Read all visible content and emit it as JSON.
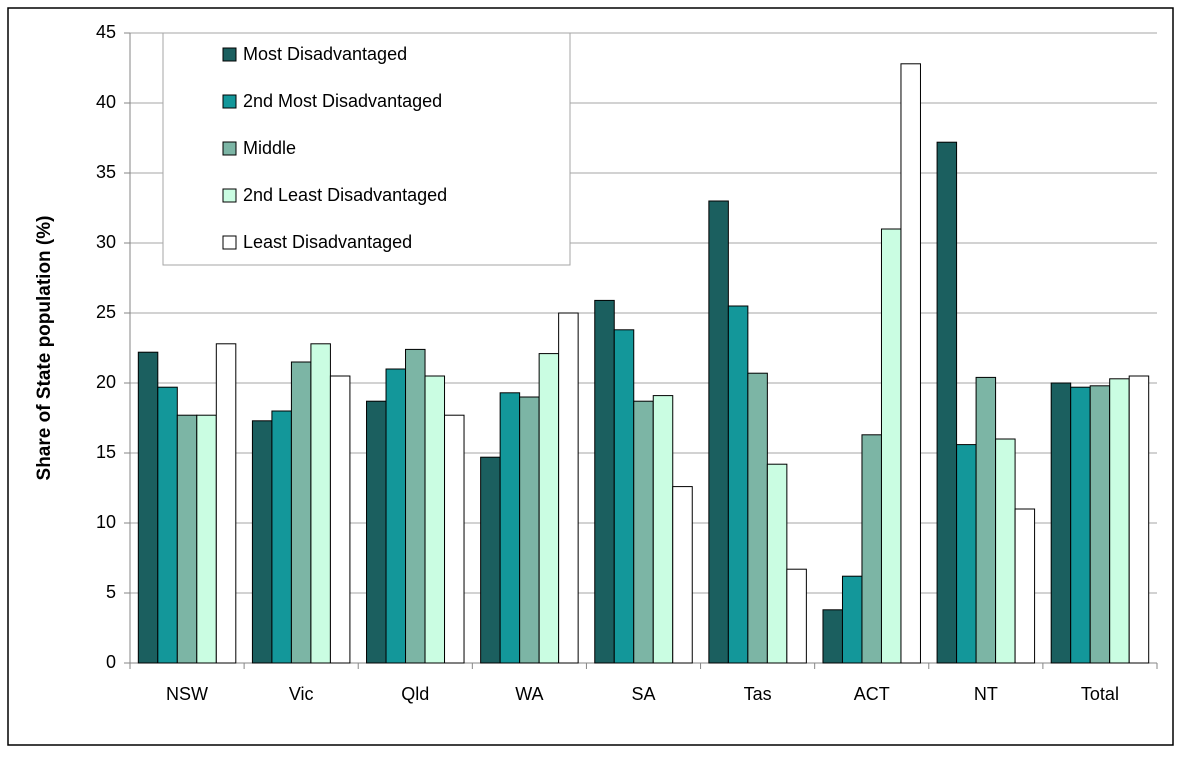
{
  "chart_data": {
    "type": "bar",
    "y_label": "Share of State population (%)",
    "categories": [
      "NSW",
      "Vic",
      "Qld",
      "WA",
      "SA",
      "Tas",
      "ACT",
      "NT",
      "Total"
    ],
    "series": [
      {
        "name": "Most Disadvantaged",
        "color": "#1b5f5f",
        "values": [
          22.2,
          17.3,
          18.7,
          14.7,
          25.9,
          33.0,
          3.8,
          37.2,
          20.0
        ]
      },
      {
        "name": "2nd Most Disadvantaged",
        "color": "#13979a",
        "values": [
          19.7,
          18.0,
          21.0,
          19.3,
          23.8,
          25.5,
          6.2,
          15.6,
          19.7
        ]
      },
      {
        "name": "Middle",
        "color": "#7cb5a5",
        "values": [
          17.7,
          21.5,
          22.4,
          19.0,
          18.7,
          20.7,
          16.3,
          20.4,
          19.8
        ]
      },
      {
        "name": "2nd Least Disadvantaged",
        "color": "#cafde2",
        "values": [
          17.7,
          22.8,
          20.5,
          22.1,
          19.1,
          14.2,
          31.0,
          16.0,
          20.3
        ]
      },
      {
        "name": "Least Disadvantaged",
        "color": "#ffffff",
        "values": [
          22.8,
          20.5,
          17.7,
          25.0,
          12.6,
          6.7,
          42.8,
          11.0,
          20.5
        ]
      }
    ],
    "ylim": [
      0,
      45
    ],
    "yticks": [
      0,
      5,
      10,
      15,
      20,
      25,
      30,
      35,
      40,
      45
    ],
    "grid": true,
    "legend": "upper left"
  }
}
